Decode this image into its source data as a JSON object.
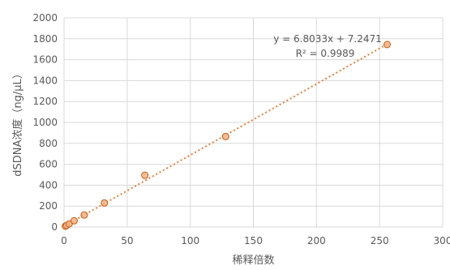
{
  "chart_data": {
    "type": "scatter",
    "title": "",
    "xlabel": "稀释倍数",
    "ylabel": "dSDNA浓度（ng/μL）",
    "xlim": [
      0,
      300
    ],
    "ylim": [
      0,
      2000
    ],
    "x_ticks": [
      0,
      50,
      100,
      150,
      200,
      250,
      300
    ],
    "y_ticks": [
      0,
      200,
      400,
      600,
      800,
      1000,
      1200,
      1400,
      1600,
      1800,
      2000
    ],
    "grid": true,
    "series": [
      {
        "x": [
          1,
          2,
          4,
          8,
          16,
          32,
          64,
          128,
          256
        ],
        "y": [
          8,
          15,
          30,
          60,
          115,
          230,
          495,
          865,
          1745
        ],
        "color": "#ed7d31"
      }
    ],
    "trendline": {
      "slope": 6.8033,
      "intercept": 7.2471,
      "equation": "y = 6.8033x + 7.2471",
      "r_squared": "R² = 0.9989",
      "color": "#ed7d31"
    }
  }
}
